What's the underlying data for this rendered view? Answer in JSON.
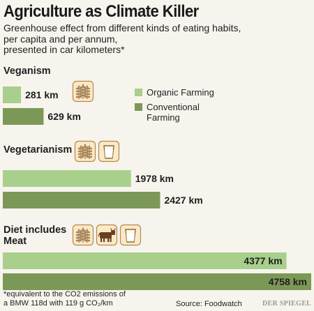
{
  "title": "Agriculture as Climate Killer",
  "subtitle_lines": [
    "Greenhouse effect from different kinds of eating habits,",
    "per capita and per annum,",
    "presented in car kilometers*"
  ],
  "chart_data": {
    "type": "bar",
    "orientation": "horizontal",
    "unit": "km",
    "colors": {
      "organic": "#a9cf8c",
      "conventional": "#7c9856"
    },
    "legend": {
      "placement": "top-right",
      "entries": [
        {
          "name": "Organic Farming",
          "color": "#a9cf8c"
        },
        {
          "name": "Conventional Farming",
          "color": "#7c9856"
        }
      ]
    },
    "groups": [
      {
        "label": "Veganism",
        "icons": [
          "grain-icon"
        ],
        "bars": [
          {
            "series": "Organic Farming",
            "value": 281,
            "label": "281 km"
          },
          {
            "series": "Conventional Farming",
            "value": 629,
            "label": "629 km"
          }
        ]
      },
      {
        "label": "Vegetarianism",
        "icons": [
          "grain-icon",
          "milk-glass-icon"
        ],
        "bars": [
          {
            "series": "Organic Farming",
            "value": 1978,
            "label": "1978 km"
          },
          {
            "series": "Conventional Farming",
            "value": 2427,
            "label": "2427 km"
          }
        ]
      },
      {
        "label": "Diet includes Meat",
        "icons": [
          "grain-icon",
          "cow-icon",
          "milk-glass-icon"
        ],
        "bars": [
          {
            "series": "Organic Farming",
            "value": 4377,
            "label": "4377 km"
          },
          {
            "series": "Conventional Farming",
            "value": 4758,
            "label": "4758 km"
          }
        ]
      }
    ],
    "xlim": [
      0,
      4758
    ],
    "grid": false
  },
  "footnote_lines": [
    "*equivalent to the CO2 emissions of",
    "a BMW 118d with 119 g CO₂/km"
  ],
  "source": "Source: Foodwatch",
  "brand": "DER SPIEGEL"
}
